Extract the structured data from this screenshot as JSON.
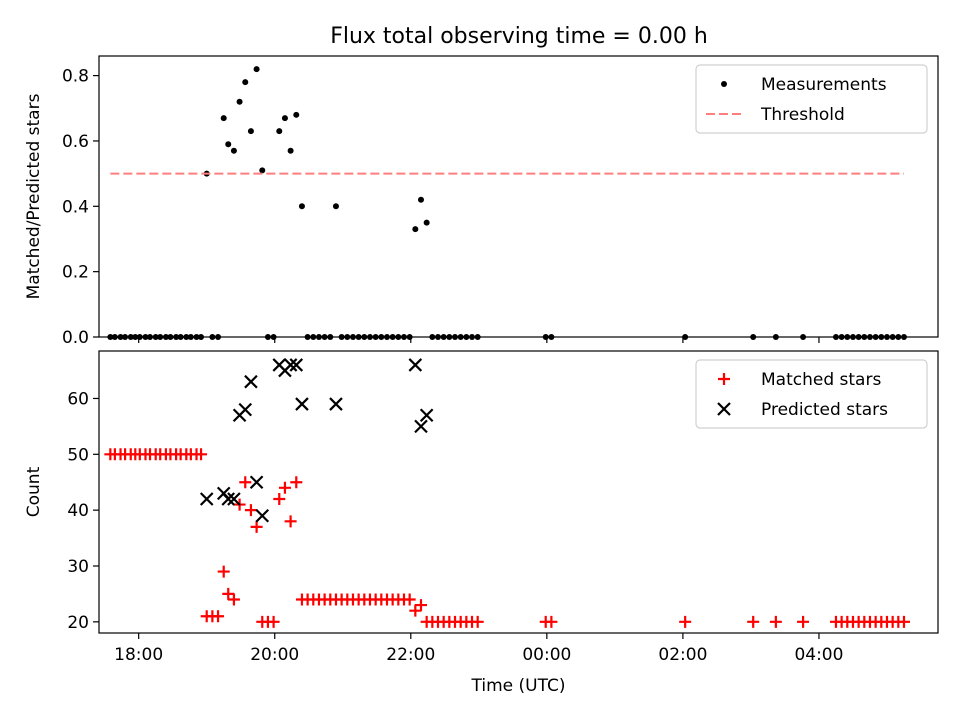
{
  "figure": {
    "title": "Flux total observing time = 0.00 h"
  },
  "chart_data": [
    {
      "type": "scatter",
      "ylabel": "Matched/Predicted stars",
      "xlabel": "",
      "xlim": [
        "17:25",
        "05:45"
      ],
      "ylim": [
        0,
        0.86
      ],
      "yticks": [
        0.0,
        0.2,
        0.4,
        0.6,
        0.8
      ],
      "ytick_labels": [
        "0.0",
        "0.2",
        "0.4",
        "0.6",
        "0.8"
      ],
      "xticks": [
        "18:00",
        "20:00",
        "22:00",
        "00:00",
        "02:00",
        "04:00"
      ],
      "xtick_labels": [
        "",
        "",
        "",
        "",
        "",
        ""
      ],
      "grid": false,
      "legend": {
        "loc": "upper right",
        "entries": [
          "Measurements",
          "Threshold"
        ]
      },
      "series": [
        {
          "name": "Measurements",
          "marker": "dot",
          "color": "#000000",
          "x": [
            "17:35",
            "17:39",
            "17:44",
            "17:48",
            "17:53",
            "17:57",
            "18:01",
            "18:06",
            "18:10",
            "18:15",
            "18:19",
            "18:24",
            "18:28",
            "18:33",
            "18:37",
            "18:42",
            "18:46",
            "18:51",
            "18:55",
            "19:00",
            "19:05",
            "19:10",
            "19:15",
            "19:19",
            "19:24",
            "19:29",
            "19:34",
            "19:39",
            "19:44",
            "19:49",
            "19:54",
            "19:59",
            "20:04",
            "20:09",
            "20:14",
            "20:19",
            "20:24",
            "20:29",
            "20:34",
            "20:39",
            "20:44",
            "20:49",
            "20:54",
            "20:59",
            "21:04",
            "21:09",
            "21:14",
            "21:19",
            "21:24",
            "21:29",
            "21:34",
            "21:39",
            "21:44",
            "21:49",
            "21:54",
            "21:59",
            "22:04",
            "22:09",
            "22:14",
            "22:19",
            "22:24",
            "22:29",
            "22:34",
            "22:39",
            "22:44",
            "22:49",
            "22:54",
            "22:59",
            "23:59",
            "00:04",
            "02:02",
            "03:02",
            "03:22",
            "03:46",
            "04:15",
            "04:20",
            "04:25",
            "04:30",
            "04:35",
            "04:40",
            "04:45",
            "04:50",
            "04:55",
            "05:00",
            "05:05",
            "05:10",
            "05:15"
          ],
          "y": [
            0,
            0,
            0,
            0,
            0,
            0,
            0,
            0,
            0,
            0,
            0,
            0,
            0,
            0,
            0,
            0,
            0,
            0,
            0,
            0.5,
            0,
            0,
            0.67,
            0.59,
            0.57,
            0.72,
            0.78,
            0.63,
            0.82,
            0.51,
            0,
            0,
            0.63,
            0.67,
            0.57,
            0.68,
            0.4,
            0,
            0,
            0,
            0,
            0,
            0.4,
            0,
            0,
            0,
            0,
            0,
            0,
            0,
            0,
            0,
            0,
            0,
            0,
            0,
            0.33,
            0.42,
            0.35,
            0,
            0,
            0,
            0,
            0,
            0,
            0,
            0,
            0,
            0,
            0,
            0,
            0,
            0,
            0,
            0,
            0,
            0,
            0,
            0,
            0,
            0,
            0,
            0,
            0,
            0,
            0,
            0
          ]
        },
        {
          "name": "Threshold",
          "style": "dashed",
          "color": "#ff7f7f",
          "x": [
            "17:35",
            "05:15"
          ],
          "y": [
            0.5,
            0.5
          ]
        }
      ]
    },
    {
      "type": "scatter",
      "ylabel": "Count",
      "xlabel": "Time (UTC)",
      "xlim": [
        "17:25",
        "05:45"
      ],
      "ylim": [
        18,
        68.5
      ],
      "yticks": [
        20,
        30,
        40,
        50,
        60
      ],
      "ytick_labels": [
        "20",
        "30",
        "40",
        "50",
        "60"
      ],
      "xticks": [
        "18:00",
        "20:00",
        "22:00",
        "00:00",
        "02:00",
        "04:00"
      ],
      "xtick_labels": [
        "18:00",
        "20:00",
        "22:00",
        "00:00",
        "02:00",
        "04:00"
      ],
      "grid": false,
      "legend": {
        "loc": "upper right",
        "entries": [
          "Matched stars",
          "Predicted stars"
        ]
      },
      "series": [
        {
          "name": "Matched stars",
          "marker": "plus",
          "color": "#ff0000",
          "x": [
            "17:35",
            "17:39",
            "17:44",
            "17:48",
            "17:53",
            "17:57",
            "18:01",
            "18:06",
            "18:10",
            "18:15",
            "18:19",
            "18:24",
            "18:28",
            "18:33",
            "18:37",
            "18:42",
            "18:46",
            "18:51",
            "18:55",
            "19:00",
            "19:05",
            "19:10",
            "19:15",
            "19:19",
            "19:24",
            "19:29",
            "19:34",
            "19:39",
            "19:44",
            "19:49",
            "19:54",
            "19:59",
            "20:04",
            "20:09",
            "20:14",
            "20:19",
            "20:24",
            "20:29",
            "20:34",
            "20:39",
            "20:44",
            "20:49",
            "20:54",
            "20:59",
            "21:04",
            "21:09",
            "21:14",
            "21:19",
            "21:24",
            "21:29",
            "21:34",
            "21:39",
            "21:44",
            "21:49",
            "21:54",
            "21:59",
            "22:04",
            "22:09",
            "22:14",
            "22:19",
            "22:24",
            "22:29",
            "22:34",
            "22:39",
            "22:44",
            "22:49",
            "22:54",
            "22:59",
            "23:59",
            "00:04",
            "02:02",
            "03:02",
            "03:22",
            "03:46",
            "04:15",
            "04:20",
            "04:25",
            "04:30",
            "04:35",
            "04:40",
            "04:45",
            "04:50",
            "04:55",
            "05:00",
            "05:05",
            "05:10",
            "05:15"
          ],
          "y": [
            50,
            50,
            50,
            50,
            50,
            50,
            50,
            50,
            50,
            50,
            50,
            50,
            50,
            50,
            50,
            50,
            50,
            50,
            50,
            21,
            21,
            21,
            29,
            25,
            24,
            41,
            45,
            40,
            37,
            20,
            20,
            20,
            42,
            44,
            38,
            45,
            24,
            24,
            24,
            24,
            24,
            24,
            24,
            24,
            24,
            24,
            24,
            24,
            24,
            24,
            24,
            24,
            24,
            24,
            24,
            24,
            22,
            23,
            20,
            20,
            20,
            20,
            20,
            20,
            20,
            20,
            20,
            20,
            20,
            20,
            20,
            20,
            20,
            20,
            20,
            20,
            20,
            20,
            20,
            20,
            20,
            20,
            20,
            20,
            20,
            20,
            20
          ]
        },
        {
          "name": "Predicted stars",
          "marker": "x",
          "color": "#000000",
          "x": [
            "19:00",
            "19:15",
            "19:19",
            "19:24",
            "19:29",
            "19:34",
            "19:39",
            "19:44",
            "19:49",
            "20:04",
            "20:09",
            "20:14",
            "20:19",
            "20:24",
            "20:54",
            "22:04",
            "22:09",
            "22:14"
          ],
          "y": [
            42,
            43,
            42,
            42,
            57,
            58,
            63,
            45,
            39,
            66,
            65,
            66,
            66,
            59,
            59,
            66,
            55,
            57
          ]
        }
      ]
    }
  ]
}
